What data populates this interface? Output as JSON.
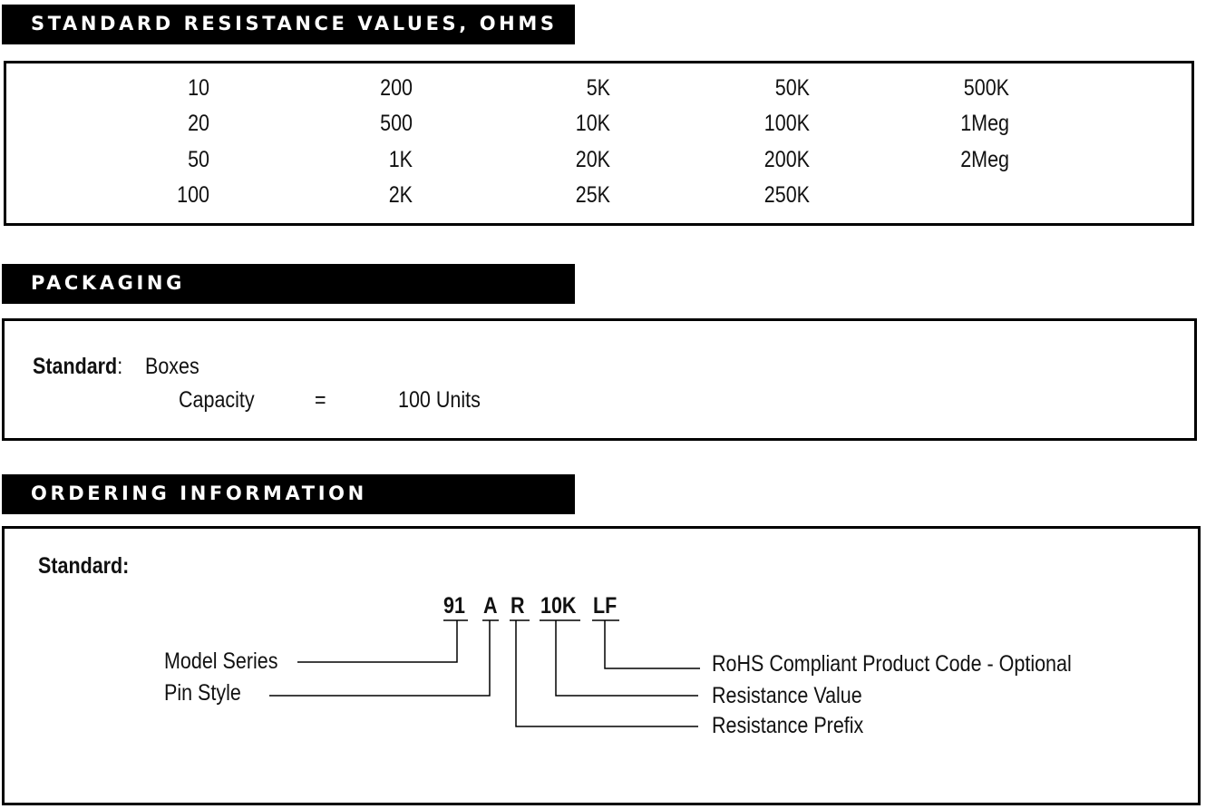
{
  "sections": {
    "resistance": {
      "title": "STANDARD RESISTANCE VALUES, OHMS",
      "columns": [
        [
          "10",
          "20",
          "50",
          "100"
        ],
        [
          "200",
          "500",
          "1K",
          "2K"
        ],
        [
          "5K",
          "10K",
          "20K",
          "25K"
        ],
        [
          "50K",
          "100K",
          "200K",
          "250K"
        ],
        [
          "500K",
          "1Meg",
          "2Meg"
        ]
      ]
    },
    "packaging": {
      "title": "PACKAGING",
      "standard_label": "Standard",
      "colon": ":",
      "standard_value": "Boxes",
      "capacity_label": "Capacity",
      "equals": "=",
      "capacity_value": "100 Units"
    },
    "ordering": {
      "title": "ORDERING INFORMATION",
      "standard_label": "Standard:",
      "code_parts": [
        "91",
        "A",
        "R",
        "10K",
        "LF"
      ],
      "labels": {
        "model_series": "Model Series",
        "pin_style": "Pin Style",
        "rohs": "RoHS Compliant Product Code - Optional",
        "resistance_value": "Resistance Value",
        "resistance_prefix": "Resistance Prefix"
      }
    }
  }
}
